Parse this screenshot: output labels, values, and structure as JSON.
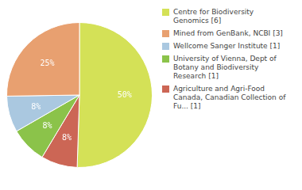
{
  "chart_data": {
    "type": "pie",
    "values": [
      50,
      8,
      8,
      8,
      25
    ],
    "value_labels": [
      "50%",
      "8%",
      "8%",
      "8%",
      "25%"
    ],
    "colors": [
      "#d4e157",
      "#cc6655",
      "#8bc34a",
      "#aac8e0",
      "#e8a070"
    ],
    "data_labels": true,
    "legend": "right",
    "legend_entries": [
      {
        "name": "Centre for Biodiversity\nGenomics [6]",
        "color": "#d4e157"
      },
      {
        "name": "Mined from GenBank, NCBI [3]",
        "color": "#e8a070"
      },
      {
        "name": "Wellcome Sanger Institute [1]",
        "color": "#aac8e0"
      },
      {
        "name": "University of Vienna, Dept of\nBotany and Biodiversity\nResearch [1]",
        "color": "#8bc34a"
      },
      {
        "name": "Agriculture and Agri-Food\nCanada, Canadian Collection of\nFu... [1]",
        "color": "#cc6655"
      }
    ]
  }
}
